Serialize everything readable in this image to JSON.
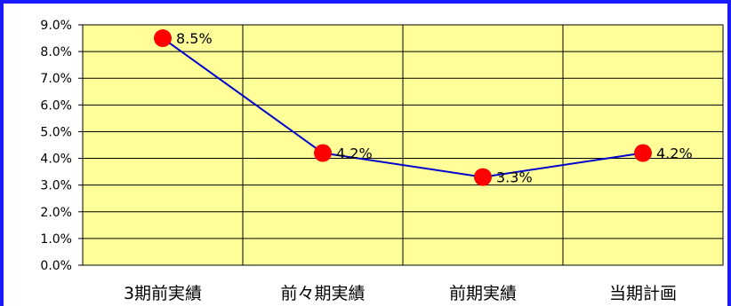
{
  "chart_data": {
    "type": "line",
    "categories": [
      "3期前実績",
      "前々期実績",
      "前期実績",
      "当期計画"
    ],
    "series": [
      {
        "values": [
          8.5,
          4.2,
          3.3,
          4.2
        ]
      }
    ],
    "data_labels": [
      "8.5%",
      "4.2%",
      "3.3%",
      "4.2%"
    ],
    "y_ticks": [
      "0.0%",
      "1.0%",
      "2.0%",
      "3.0%",
      "4.0%",
      "5.0%",
      "6.0%",
      "7.0%",
      "8.0%",
      "9.0%"
    ],
    "ylim": [
      0,
      9
    ],
    "grid": true,
    "colors": {
      "plot_background": "#ffff99",
      "line": "#0000cc",
      "marker": "#ff0000",
      "frame": "#1a1aff"
    }
  }
}
